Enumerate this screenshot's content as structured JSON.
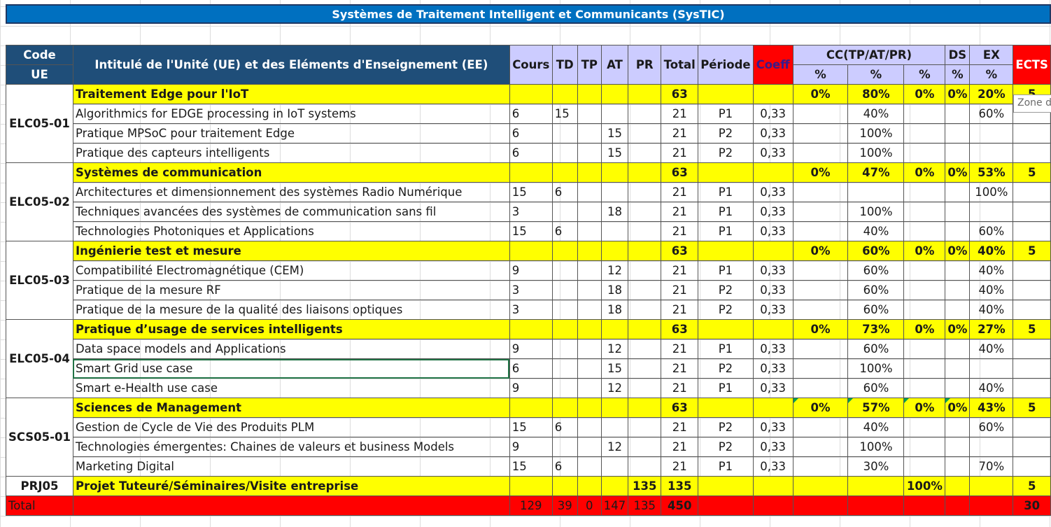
{
  "title": "Systèmes de Traitement Intelligent et Communicants  (SysTIC)",
  "header": {
    "code": "Code",
    "ue": "UE",
    "intitule": "Intitulé de l'Unité (UE) et des Eléments d'Enseignement (EE)",
    "cours": "Cours",
    "td": "TD",
    "tp": "TP",
    "at": "AT",
    "pr": "PR",
    "total": "Total",
    "periode": "Période",
    "coeff": "Coeff",
    "cc": "CC(TP/AT/PR)",
    "ds": "DS",
    "ex": "EX",
    "ects": "ECTS",
    "pct": "%"
  },
  "tooltip": "Zone de",
  "ues": [
    {
      "code": "ELC05-01",
      "row": {
        "title": "Traitement Edge pour l'IoT",
        "total": "63",
        "cc1": "0%",
        "cc2": "80%",
        "cc3": "0%",
        "ds": "0%",
        "ex": "20%",
        "ects": "5"
      },
      "ees": [
        {
          "name": "Algorithmics for EDGE processing in IoT systems",
          "cours": "6",
          "td": "15",
          "tp": "",
          "at": "",
          "total": "21",
          "periode": "P1",
          "coeff": "0,33",
          "cc2": "40%",
          "ex": "60%"
        },
        {
          "name": "Pratique MPSoC pour traitement Edge",
          "cours": "6",
          "td": "",
          "tp": "",
          "at": "15",
          "total": "21",
          "periode": "P2",
          "coeff": "0,33",
          "cc2": "100%",
          "ex": ""
        },
        {
          "name": "Pratique des capteurs intelligents",
          "cours": "6",
          "td": "",
          "tp": "",
          "at": "15",
          "total": "21",
          "periode": "P2",
          "coeff": "0,33",
          "cc2": "100%",
          "ex": ""
        }
      ]
    },
    {
      "code": "ELC05-02",
      "row": {
        "title": " Systèmes de communication",
        "total": "63",
        "cc1": "0%",
        "cc2": "47%",
        "cc3": "0%",
        "ds": "0%",
        "ex": "53%",
        "ects": "5"
      },
      "ees": [
        {
          "name": "Architectures et dimensionnement des systèmes Radio Numérique",
          "cours": "15",
          "td": "6",
          "tp": "",
          "at": "",
          "total": "21",
          "periode": "P1",
          "coeff": "0,33",
          "cc2": "",
          "ex": "100%"
        },
        {
          "name": "Techniques avancées des systèmes de communication sans fil",
          "cours": "3",
          "td": "",
          "tp": "",
          "at": "18",
          "total": "21",
          "periode": "P1",
          "coeff": "0,33",
          "cc2": "100%",
          "ex": ""
        },
        {
          "name": "Technologies Photoniques et Applications",
          "cours": "15",
          "td": "6",
          "tp": "",
          "at": "",
          "total": "21",
          "periode": "P1",
          "coeff": "0,33",
          "cc2": "40%",
          "ex": "60%"
        }
      ]
    },
    {
      "code": "ELC05-03",
      "row": {
        "title": "Ingénierie test et mesure",
        "total": "63",
        "cc1": "0%",
        "cc2": "60%",
        "cc3": "0%",
        "ds": "0%",
        "ex": "40%",
        "ects": "5"
      },
      "ees": [
        {
          "name": "Compatibilité Electromagnétique (CEM)",
          "cours": "9",
          "td": "",
          "tp": "",
          "at": "12",
          "total": "21",
          "periode": "P1",
          "coeff": "0,33",
          "cc2": "60%",
          "ex": "40%"
        },
        {
          "name": "Pratique de la mesure RF",
          "cours": "3",
          "td": "",
          "tp": "",
          "at": "18",
          "total": "21",
          "periode": "P2",
          "coeff": "0,33",
          "cc2": "60%",
          "ex": "40%"
        },
        {
          "name": "Pratique de la mesure de la qualité des liaisons optiques",
          "cours": "3",
          "td": "",
          "tp": "",
          "at": "18",
          "total": "21",
          "periode": "P2",
          "coeff": "0,33",
          "cc2": "60%",
          "ex": "40%"
        }
      ]
    },
    {
      "code": "ELC05-04",
      "row": {
        "title": "Pratique d’usage de services intelligents",
        "total": "63",
        "cc1": "0%",
        "cc2": "73%",
        "cc3": "0%",
        "ds": "0%",
        "ex": "27%",
        "ects": "5"
      },
      "ees": [
        {
          "name": "Data space models and Applications",
          "cours": "9",
          "td": "",
          "tp": "",
          "at": "12",
          "total": "21",
          "periode": "P1",
          "coeff": "0,33",
          "cc2": "60%",
          "ex": "40%"
        },
        {
          "name": "Smart Grid use case",
          "cours": "6",
          "td": "",
          "tp": "",
          "at": "15",
          "total": "21",
          "periode": "P2",
          "coeff": "0,33",
          "cc2": "100%",
          "ex": ""
        },
        {
          "name": "Smart e-Health use case",
          "cours": "9",
          "td": "",
          "tp": "",
          "at": "12",
          "total": "21",
          "periode": "P1",
          "coeff": "0,33",
          "cc2": "60%",
          "ex": "40%"
        }
      ]
    },
    {
      "code": "SCS05-01",
      "row": {
        "title": "Sciences de Management",
        "total": "63",
        "cc1": "0%",
        "cc2": "57%",
        "cc3": "0%",
        "ds": "0%",
        "ex": "43%",
        "ects": "5"
      },
      "ees": [
        {
          "name": "Gestion de Cycle de Vie des Produits PLM",
          "cours": "15",
          "td": "6",
          "tp": "",
          "at": "",
          "total": "21",
          "periode": "P2",
          "coeff": "0,33",
          "cc2": "40%",
          "ex": "60%"
        },
        {
          "name": "Technologies émergentes: Chaines de valeurs et business Models",
          "cours": "9",
          "td": "",
          "tp": "",
          "at": "12",
          "total": "21",
          "periode": "P2",
          "coeff": "0,33",
          "cc2": "100%",
          "ex": ""
        },
        {
          "name": "Marketing Digital",
          "cours": "15",
          "td": "6",
          "tp": "",
          "at": "",
          "total": "21",
          "periode": "P1",
          "coeff": "0,33",
          "cc2": "30%",
          "ex": "70%"
        }
      ]
    }
  ],
  "projet": {
    "code": "PRJ05",
    "title": "Projet Tuteuré/Séminaires/Visite entreprise",
    "pr": "135",
    "total": "135",
    "cc3": "100%",
    "ects": "5"
  },
  "totals": {
    "label": "Total",
    "cours": "129",
    "td": "39",
    "tp": "0",
    "at": "147",
    "pr": "135",
    "total": "450",
    "ects": "30"
  }
}
